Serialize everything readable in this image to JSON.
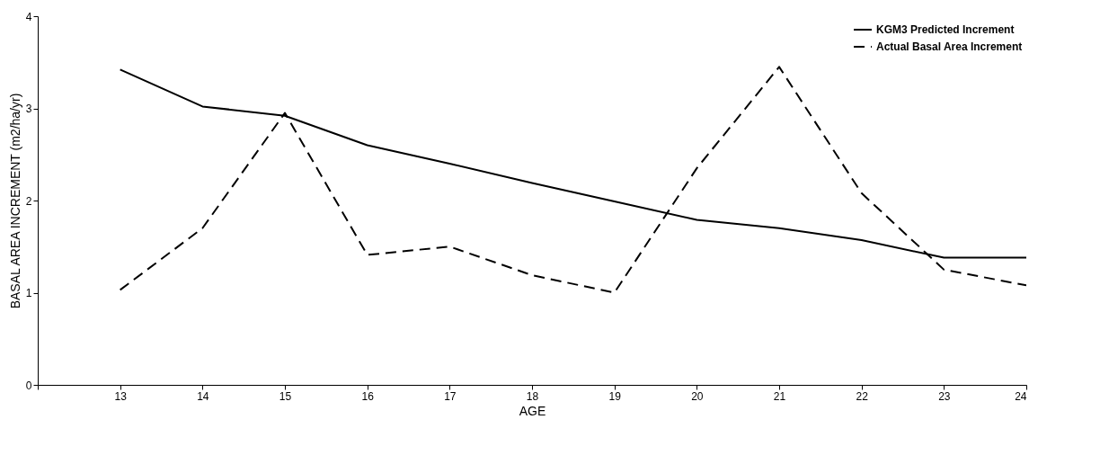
{
  "chart_data": {
    "type": "line",
    "xlabel": "AGE",
    "ylabel": "BASAL AREA INCREMENT (m2/ha/yr)",
    "x": [
      13,
      14,
      15,
      16,
      17,
      18,
      19,
      20,
      21,
      22,
      23,
      24
    ],
    "series": [
      {
        "name": "KGM3 Predicted Increment",
        "color": "#000000",
        "line_style": "solid",
        "values": [
          3.42,
          3.02,
          2.92,
          2.6,
          2.4,
          2.19,
          1.99,
          1.79,
          1.7,
          1.57,
          1.38,
          1.38
        ]
      },
      {
        "name": "Actual Basal Area Increment",
        "color": "#000000",
        "line_style": "dashed",
        "values": [
          1.03,
          1.7,
          2.95,
          1.41,
          1.5,
          1.19,
          1.0,
          2.35,
          3.45,
          2.08,
          1.25,
          1.08
        ]
      }
    ],
    "xlim": [
      12,
      24
    ],
    "xticks": [
      {
        "value": 12,
        "label": null
      },
      13,
      14,
      15,
      16,
      17,
      18,
      19,
      20,
      21,
      22,
      23,
      24
    ],
    "ylim": [
      0,
      4
    ],
    "yticks": [
      0,
      1,
      2,
      3,
      4
    ],
    "grid": false,
    "legend": "top right",
    "marker": "none"
  }
}
